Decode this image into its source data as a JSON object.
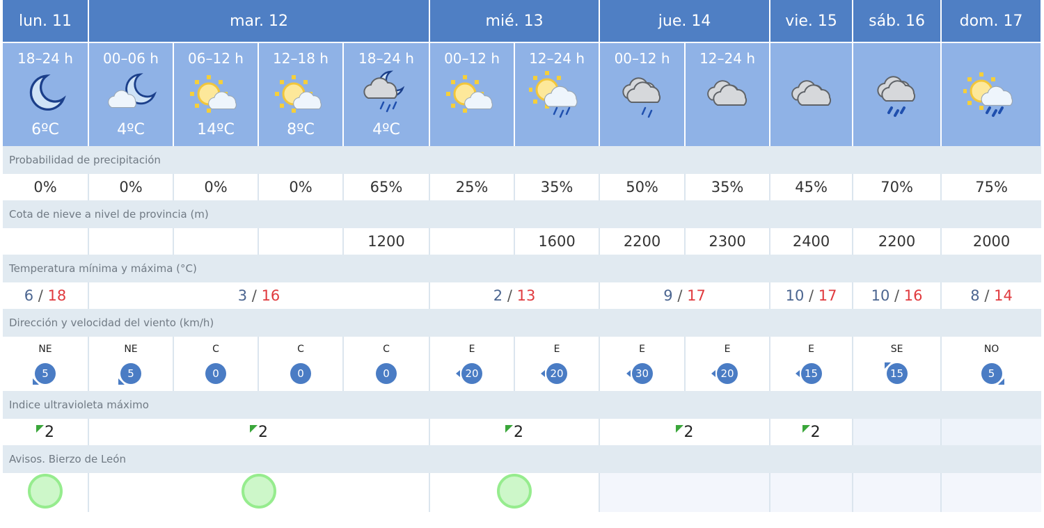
{
  "days": [
    {
      "label": "lun. 11",
      "span": 1
    },
    {
      "label": "mar. 12",
      "span": 4
    },
    {
      "label": "mié. 13",
      "span": 2
    },
    {
      "label": "jue. 14",
      "span": 2
    },
    {
      "label": "vie. 15",
      "span": 1
    },
    {
      "label": "sáb. 16",
      "span": 1
    },
    {
      "label": "dom. 17",
      "span": 1
    }
  ],
  "periods": [
    {
      "label": "18–24 h",
      "icon": "moon-icon",
      "temp": "6ºC"
    },
    {
      "label": "00–06 h",
      "icon": "cloud-moon-icon",
      "temp": "4ºC"
    },
    {
      "label": "06–12 h",
      "icon": "sun-cloud-icon",
      "temp": "14ºC"
    },
    {
      "label": "12–18 h",
      "icon": "sun-cloud-icon",
      "temp": "8ºC"
    },
    {
      "label": "18–24 h",
      "icon": "cloud-moon-rain-icon",
      "temp": "4ºC"
    },
    {
      "label": "00–12 h",
      "icon": "sun-cloud-icon",
      "temp": ""
    },
    {
      "label": "12–24 h",
      "icon": "sun-cloud-rain-icon",
      "temp": ""
    },
    {
      "label": "00–12 h",
      "icon": "cloud-rain-icon",
      "temp": ""
    },
    {
      "label": "12–24 h",
      "icon": "cloud-icon",
      "temp": ""
    },
    {
      "label": "",
      "icon": "cloud-icon",
      "temp": ""
    },
    {
      "label": "",
      "icon": "cloud-heavy-rain-icon",
      "temp": ""
    },
    {
      "label": "",
      "icon": "sun-cloud-heavy-rain-icon",
      "temp": ""
    }
  ],
  "labels": {
    "precip": "Probabilidad de precipitación",
    "snow": "Cota de nieve a nivel de provincia (m)",
    "temp": "Temperatura mínima y máxima (°C)",
    "wind": "Dirección y velocidad del viento (km/h)",
    "uv": "Indice ultravioleta máximo",
    "avisos": "Avisos. Bierzo de León"
  },
  "precip": [
    "0%",
    "0%",
    "0%",
    "0%",
    "65%",
    "25%",
    "35%",
    "50%",
    "35%",
    "45%",
    "70%",
    "75%"
  ],
  "snow": [
    "",
    "",
    "",
    "",
    "1200",
    "",
    "1600",
    "2200",
    "2300",
    "2400",
    "2200",
    "2000"
  ],
  "temps": [
    {
      "min": "6",
      "max": "18"
    },
    {
      "min": "3",
      "max": "16"
    },
    {
      "min": "2",
      "max": "13"
    },
    {
      "min": "9",
      "max": "17"
    },
    {
      "min": "10",
      "max": "17"
    },
    {
      "min": "10",
      "max": "16"
    },
    {
      "min": "8",
      "max": "14"
    }
  ],
  "separator": "/",
  "wind": [
    {
      "dir": "NE",
      "speed": "5"
    },
    {
      "dir": "NE",
      "speed": "5"
    },
    {
      "dir": "C",
      "speed": "0"
    },
    {
      "dir": "C",
      "speed": "0"
    },
    {
      "dir": "C",
      "speed": "0"
    },
    {
      "dir": "E",
      "speed": "20"
    },
    {
      "dir": "E",
      "speed": "20"
    },
    {
      "dir": "E",
      "speed": "30"
    },
    {
      "dir": "E",
      "speed": "20"
    },
    {
      "dir": "E",
      "speed": "15"
    },
    {
      "dir": "SE",
      "speed": "15"
    },
    {
      "dir": "NO",
      "speed": "5"
    }
  ],
  "uv": [
    "2",
    "2",
    "2",
    "2",
    "2",
    "",
    ""
  ],
  "avisos": [
    "green",
    "green",
    "green",
    "",
    "",
    "",
    ""
  ],
  "colors": {
    "header": "#4f7fc4",
    "period": "#8fb2e6",
    "min": "#4b6590",
    "max": "#e03a3e",
    "wind": "#4a7cc4",
    "uv_low": "#3aa63a",
    "aviso_green": "#96ec8e"
  }
}
